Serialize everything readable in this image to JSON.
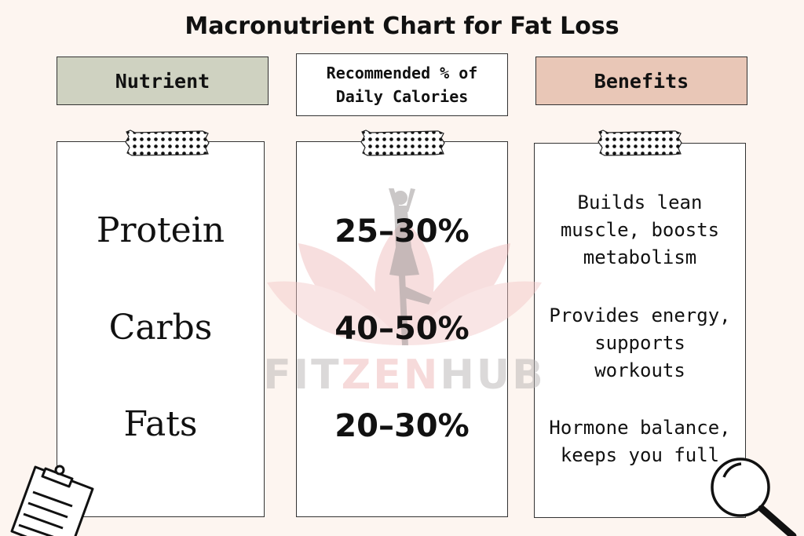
{
  "title": "Macronutrient Chart for Fat Loss",
  "headers": {
    "nutrient": "Nutrient",
    "percent_line1": "Recommended % of",
    "percent_line2": "Daily Calories",
    "benefits": "Benefits"
  },
  "rows": [
    {
      "nutrient": "Protein",
      "percent": "25–30%",
      "benefit_lines": [
        "Builds lean",
        "muscle, boosts",
        "metabolism"
      ]
    },
    {
      "nutrient": "Carbs",
      "percent": "40–50%",
      "benefit_lines": [
        "Provides energy,",
        "supports",
        "workouts"
      ]
    },
    {
      "nutrient": "Fats",
      "percent": "20–30%",
      "benefit_lines": [
        "Hormone balance,",
        "keeps you full"
      ]
    }
  ],
  "watermark": {
    "prefix": "FIT",
    "middle": "ZEN",
    "suffix": "HUB"
  },
  "colors": {
    "background": "#fdf5f0",
    "nutrient_header": "#cfd2c1",
    "benefits_header": "#e9c7b7",
    "watermark_gray": "#b9b4b4",
    "watermark_pink": "#efb7b7"
  },
  "icons": {
    "tape": "dotted-tape-icon",
    "clipboard": "clipboard-icon",
    "magnifier": "magnifying-glass-icon",
    "logo": "lotus-yoga-logo-icon"
  }
}
